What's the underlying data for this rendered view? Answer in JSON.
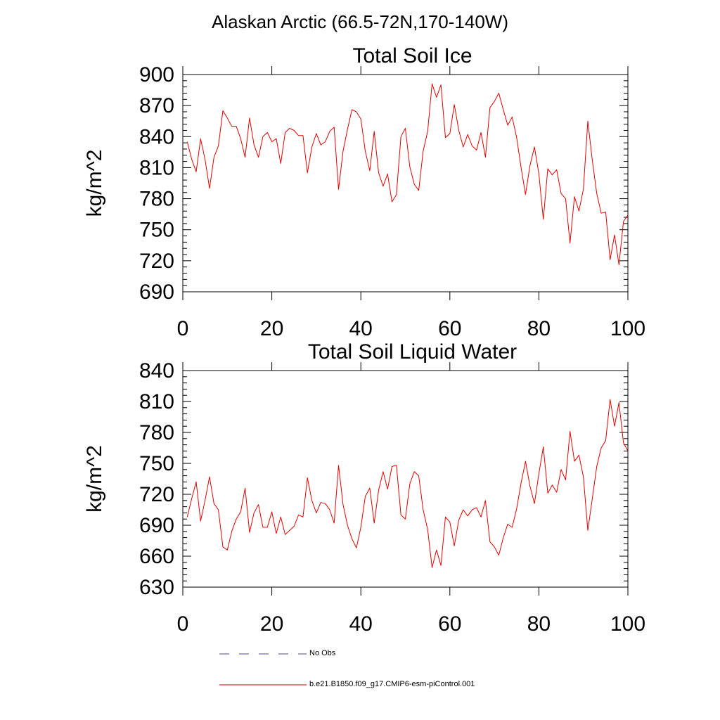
{
  "figure": {
    "suptitle": "Alaskan Arctic (66.5-72N,170-140W)"
  },
  "legend": {
    "entries": [
      {
        "label": "No Obs",
        "style": "dashed",
        "color": "#4a4a8c"
      },
      {
        "label": "b.e21.B1850.f09_g17.CMIP6-esm-piControl.001",
        "style": "solid",
        "color": "#e60000"
      }
    ]
  },
  "chart_data": [
    {
      "type": "line",
      "title": "Total Soil Ice",
      "xlabel": "",
      "ylabel": "kg/m^2",
      "xlim": [
        0,
        100
      ],
      "ylim": [
        690,
        900
      ],
      "xticks": [
        0,
        20,
        40,
        60,
        80,
        100
      ],
      "yticks": [
        690,
        720,
        750,
        780,
        810,
        840,
        870,
        900
      ],
      "grid": false,
      "series": [
        {
          "name": "b.e21.B1850.f09_g17.CMIP6-esm-piControl.001",
          "color": "#e60000",
          "x": [
            1,
            2,
            3,
            4,
            5,
            6,
            7,
            8,
            9,
            10,
            11,
            12,
            13,
            14,
            15,
            16,
            17,
            18,
            19,
            20,
            21,
            22,
            23,
            24,
            25,
            26,
            27,
            28,
            29,
            30,
            31,
            32,
            33,
            34,
            35,
            36,
            37,
            38,
            39,
            40,
            41,
            42,
            43,
            44,
            45,
            46,
            47,
            48,
            49,
            50,
            51,
            52,
            53,
            54,
            55,
            56,
            57,
            58,
            59,
            60,
            61,
            62,
            63,
            64,
            65,
            66,
            67,
            68,
            69,
            70,
            71,
            72,
            73,
            74,
            75,
            76,
            77,
            78,
            79,
            80,
            81,
            82,
            83,
            84,
            85,
            86,
            87,
            88,
            89,
            90,
            91,
            92,
            93,
            94,
            95,
            96,
            97,
            98,
            99,
            100
          ],
          "values": [
            835,
            818,
            806,
            838,
            818,
            790,
            820,
            831,
            865,
            858,
            850,
            850,
            838,
            820,
            858,
            832,
            820,
            840,
            844,
            835,
            838,
            814,
            844,
            848,
            846,
            841,
            841,
            805,
            830,
            843,
            832,
            835,
            845,
            849,
            789,
            826,
            847,
            866,
            864,
            857,
            826,
            807,
            845,
            805,
            792,
            804,
            777,
            784,
            840,
            848,
            811,
            794,
            788,
            826,
            845,
            891,
            878,
            890,
            839,
            843,
            871,
            846,
            830,
            842,
            831,
            827,
            844,
            820,
            868,
            874,
            882,
            866,
            851,
            859,
            839,
            810,
            784,
            812,
            830,
            804,
            760,
            809,
            803,
            808,
            785,
            780,
            737,
            782,
            768,
            789,
            855,
            817,
            785,
            766,
            767,
            721,
            745,
            716,
            758,
            764
          ]
        }
      ]
    },
    {
      "type": "line",
      "title": "Total Soil Liquid Water",
      "xlabel": "",
      "ylabel": "kg/m^2",
      "xlim": [
        0,
        100
      ],
      "ylim": [
        630,
        840
      ],
      "xticks": [
        0,
        20,
        40,
        60,
        80,
        100
      ],
      "yticks": [
        630,
        660,
        690,
        720,
        750,
        780,
        810,
        840
      ],
      "grid": false,
      "series": [
        {
          "name": "b.e21.B1850.f09_g17.CMIP6-esm-piControl.001",
          "color": "#e60000",
          "x": [
            1,
            2,
            3,
            4,
            5,
            6,
            7,
            8,
            9,
            10,
            11,
            12,
            13,
            14,
            15,
            16,
            17,
            18,
            19,
            20,
            21,
            22,
            23,
            24,
            25,
            26,
            27,
            28,
            29,
            30,
            31,
            32,
            33,
            34,
            35,
            36,
            37,
            38,
            39,
            40,
            41,
            42,
            43,
            44,
            45,
            46,
            47,
            48,
            49,
            50,
            51,
            52,
            53,
            54,
            55,
            56,
            57,
            58,
            59,
            60,
            61,
            62,
            63,
            64,
            65,
            66,
            67,
            68,
            69,
            70,
            71,
            72,
            73,
            74,
            75,
            76,
            77,
            78,
            79,
            80,
            81,
            82,
            83,
            84,
            85,
            86,
            87,
            88,
            89,
            90,
            91,
            92,
            93,
            94,
            95,
            96,
            97,
            98,
            99,
            100
          ],
          "values": [
            698,
            716,
            732,
            694,
            714,
            737,
            711,
            705,
            669,
            666,
            684,
            696,
            703,
            726,
            683,
            702,
            710,
            688,
            688,
            703,
            682,
            698,
            681,
            685,
            689,
            700,
            698,
            736,
            714,
            702,
            712,
            711,
            705,
            692,
            748,
            710,
            690,
            677,
            668,
            688,
            718,
            726,
            692,
            724,
            742,
            725,
            747,
            748,
            700,
            696,
            730,
            742,
            738,
            705,
            686,
            649,
            666,
            651,
            698,
            693,
            670,
            695,
            705,
            699,
            705,
            707,
            698,
            714,
            674,
            669,
            661,
            678,
            691,
            688,
            706,
            731,
            752,
            728,
            711,
            740,
            766,
            721,
            729,
            722,
            744,
            734,
            781,
            752,
            758,
            737,
            685,
            716,
            747,
            765,
            772,
            812,
            786,
            809,
            770,
            762
          ]
        }
      ]
    }
  ]
}
